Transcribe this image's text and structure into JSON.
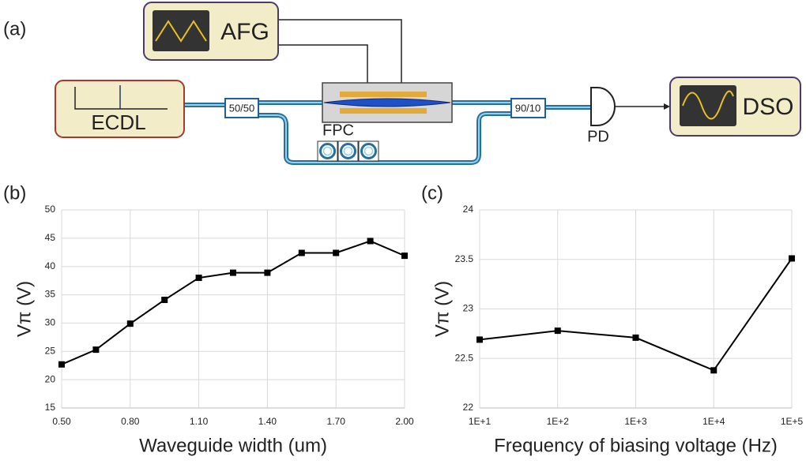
{
  "diagram": {
    "panel_label": "(a)",
    "afg": "AFG",
    "ecdl": "ECDL",
    "dso": "DSO",
    "splitter": "50/50",
    "coupler": "90/10",
    "fpc": "FPC",
    "pd": "PD"
  },
  "chart_data": [
    {
      "type": "line",
      "panel_label": "(b)",
      "xlabel": "Waveguide width (um)",
      "ylabel": "Vπ (V)",
      "x": [
        0.5,
        0.65,
        0.8,
        0.95,
        1.1,
        1.25,
        1.4,
        1.55,
        1.7,
        1.85,
        2.0
      ],
      "values": [
        22.7,
        25.3,
        29.9,
        34.1,
        38.0,
        38.9,
        38.9,
        42.4,
        42.4,
        44.5,
        41.9
      ],
      "color": "#000000",
      "xlim": [
        0.5,
        2.0
      ],
      "ylim": [
        15,
        50
      ],
      "xticks": [
        {
          "value": 0.5,
          "label": "0.50"
        },
        {
          "value": 0.8,
          "label": "0.80"
        },
        {
          "value": 1.1,
          "label": "1.10"
        },
        {
          "value": 1.4,
          "label": "1.40"
        },
        {
          "value": 1.7,
          "label": "1.70"
        },
        {
          "value": 2.0,
          "label": "2.00"
        }
      ],
      "yticks": [
        15,
        20,
        25,
        30,
        35,
        40,
        45,
        50
      ],
      "grid": true,
      "xscale": "linear"
    },
    {
      "type": "line",
      "panel_label": "(c)",
      "xlabel": "Frequency of biasing voltage (Hz)",
      "ylabel": "Vπ (V)",
      "x": [
        10,
        100,
        1000,
        10000,
        100000
      ],
      "values": [
        22.69,
        22.78,
        22.71,
        22.38,
        23.51
      ],
      "color": "#000000",
      "xlim": [
        10,
        100000
      ],
      "ylim": [
        22,
        24
      ],
      "xticks": [
        {
          "value": 10,
          "label": "1E+1"
        },
        {
          "value": 100,
          "label": "1E+2"
        },
        {
          "value": 1000,
          "label": "1E+3"
        },
        {
          "value": 10000,
          "label": "1E+4"
        },
        {
          "value": 100000,
          "label": "1E+5"
        }
      ],
      "yticks": [
        22,
        22.5,
        23,
        23.5,
        24
      ],
      "grid": true,
      "xscale": "log"
    }
  ]
}
